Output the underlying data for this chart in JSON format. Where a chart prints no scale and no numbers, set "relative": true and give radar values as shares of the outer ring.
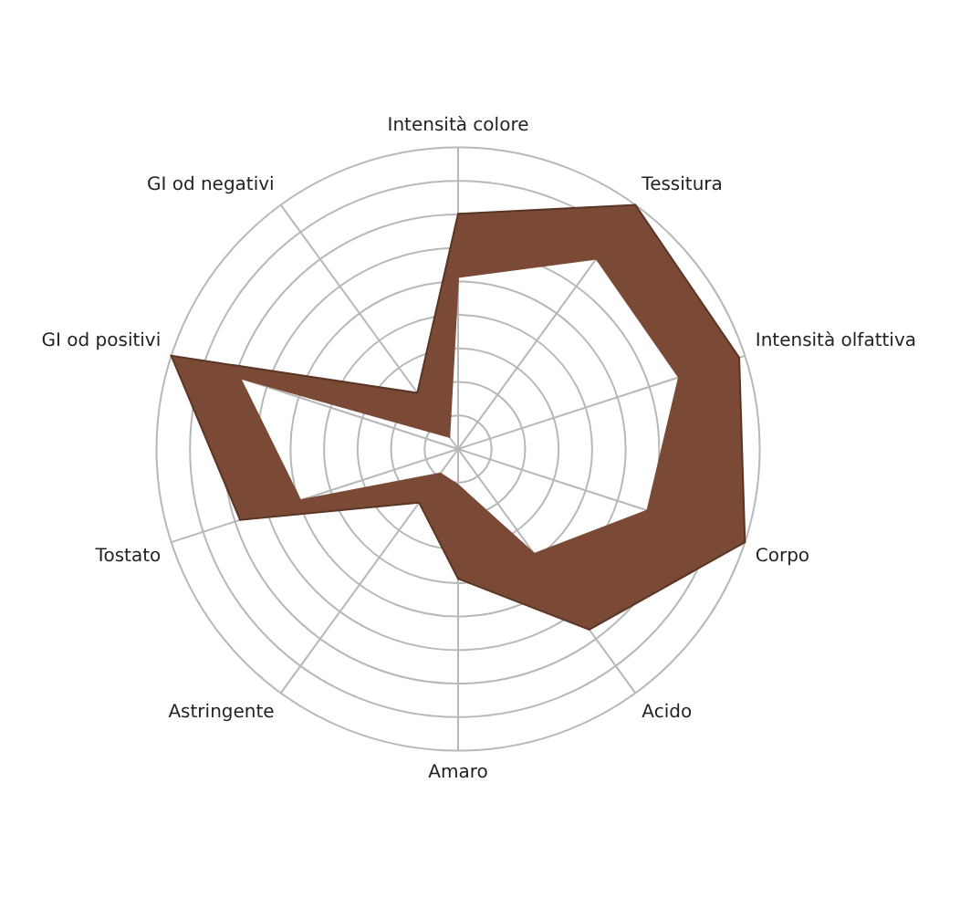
{
  "chart_data": {
    "type": "radar",
    "relative": true,
    "legend": false,
    "categories": [
      "Intensità colore",
      "Tessitura",
      "Intensità olfattiva",
      "Corpo",
      "Acido",
      "Amaro",
      "Astringente",
      "Tostato",
      "GI od positivi",
      "GI od negativi"
    ],
    "series": [
      {
        "color": "#5a3525",
        "values": [
          0.78,
          1,
          0.98,
          1,
          0.74,
          0.43,
          0.22,
          0.76,
          1,
          0.23
        ]
      },
      {
        "color": "#7a4a36",
        "values": [
          0.57,
          0.78,
          0.77,
          0.66,
          0.43,
          0.12,
          0.1,
          0.55,
          0.76,
          0.05
        ]
      }
    ]
  }
}
